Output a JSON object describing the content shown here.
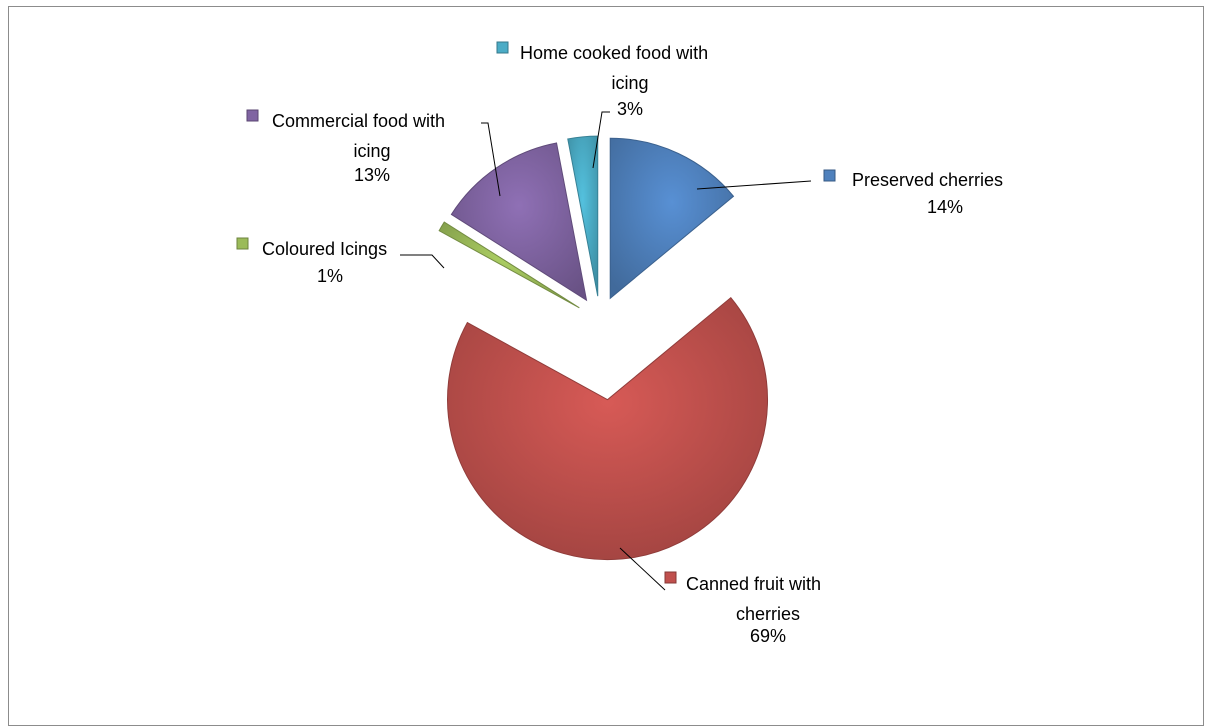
{
  "chart_data": {
    "type": "pie",
    "title": "",
    "legend": "data labels next to slices",
    "slices": [
      {
        "name": "Preserved cherries",
        "line1": "Preserved cherries",
        "line2": "",
        "pct_label": "14%",
        "value": 14,
        "color": "#4F81BD"
      },
      {
        "name": "Canned fruit with cherries",
        "line1": "Canned fruit with",
        "line2": "cherries",
        "pct_label": "69%",
        "value": 69,
        "color": "#C0504D"
      },
      {
        "name": "Coloured Icings",
        "line1": "Coloured Icings",
        "line2": "",
        "pct_label": "1%",
        "value": 1,
        "color": "#9BBB59"
      },
      {
        "name": "Commercial food with icing",
        "line1": "Commercial food with",
        "line2": "icing",
        "pct_label": "13%",
        "value": 13,
        "color": "#8064A2"
      },
      {
        "name": "Home cooked food with icing",
        "line1": "Home cooked food with",
        "line2": "icing",
        "pct_label": "3%",
        "value": 3,
        "color": "#4BACC6"
      }
    ]
  }
}
